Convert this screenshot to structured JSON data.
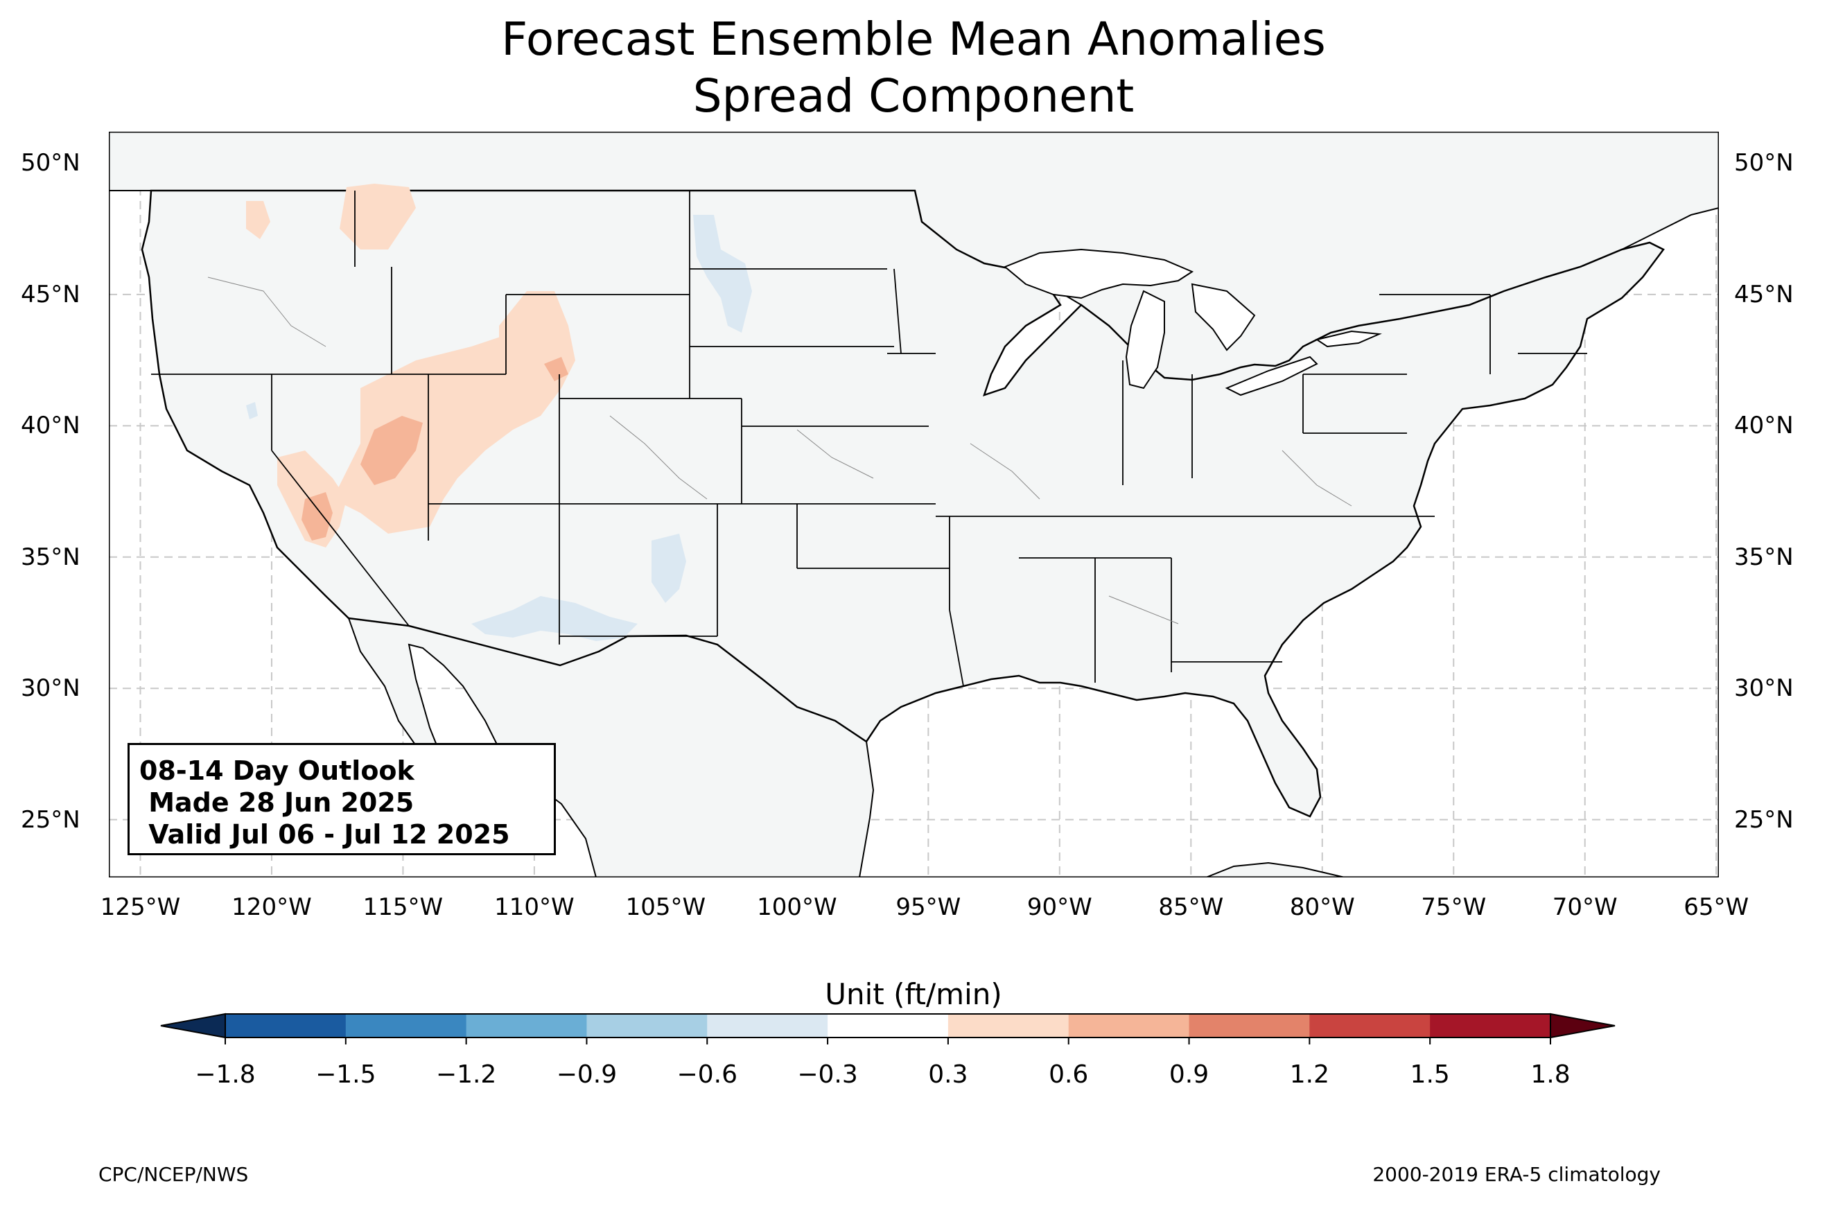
{
  "title": {
    "line1": "Forecast Ensemble Mean Anomalies",
    "line2": "Spread Component"
  },
  "map": {
    "extent": {
      "lon": [
        -126.2,
        -64.9
      ],
      "lat": [
        22.8,
        51.2
      ]
    },
    "lon_ticks": [
      "125°W",
      "120°W",
      "115°W",
      "110°W",
      "105°W",
      "100°W",
      "95°W",
      "90°W",
      "85°W",
      "80°W",
      "75°W",
      "70°W",
      "65°W"
    ],
    "lon_values": [
      -125,
      -120,
      -115,
      -110,
      -105,
      -100,
      -95,
      -90,
      -85,
      -80,
      -75,
      -70,
      -65
    ],
    "lat_ticks": [
      "50°N",
      "45°N",
      "40°N",
      "35°N",
      "30°N",
      "25°N"
    ],
    "lat_values": [
      50,
      45,
      40,
      35,
      30,
      25
    ],
    "gridlines": true,
    "land_color": "#f4f6f6",
    "anomaly_regions": [
      {
        "name": "great-basin-positive",
        "level": "0.3 to 0.6",
        "color": "#fcdcc8"
      },
      {
        "name": "california-positive",
        "level": "0.3 to 0.6",
        "color": "#fcdcc8"
      },
      {
        "name": "wyoming-positive",
        "level": "0.3 to 0.6",
        "color": "#fcdcc8"
      },
      {
        "name": "northern-rockies-positive",
        "level": "0.3 to 0.6",
        "color": "#fcdcc8"
      },
      {
        "name": "nevada-core-positive",
        "level": "0.6 to 0.9",
        "color": "#f5b598"
      },
      {
        "name": "arizona-new-mexico-negative",
        "level": "-0.6 to -0.3",
        "color": "#dbe8f2"
      },
      {
        "name": "north-dakota-negative",
        "level": "-0.6 to -0.3",
        "color": "#dbe8f2"
      }
    ]
  },
  "outlook_box": {
    "line1": "08-14 Day Outlook",
    "line2": " Made 28 Jun 2025",
    "line3": " Valid Jul 06 - Jul 12 2025"
  },
  "colorbar": {
    "label": "Unit (ft/min)",
    "ticks": [
      "−1.8",
      "−1.5",
      "−1.2",
      "−0.9",
      "−0.6",
      "−0.3",
      "0.3",
      "0.6",
      "0.9",
      "1.2",
      "1.5",
      "1.8"
    ],
    "colors": [
      "#1a5ba0",
      "#3a87c0",
      "#6aaed5",
      "#a7cfe4",
      "#dbe8f2",
      "#ffffff",
      "#fcdcc8",
      "#f5b598",
      "#e3836a",
      "#c94440",
      "#a51628"
    ],
    "under_color": "#0b2a55",
    "over_color": "#5c0010"
  },
  "footer": {
    "left": "CPC/NCEP/NWS",
    "right": "2000-2019 ERA-5 climatology"
  }
}
